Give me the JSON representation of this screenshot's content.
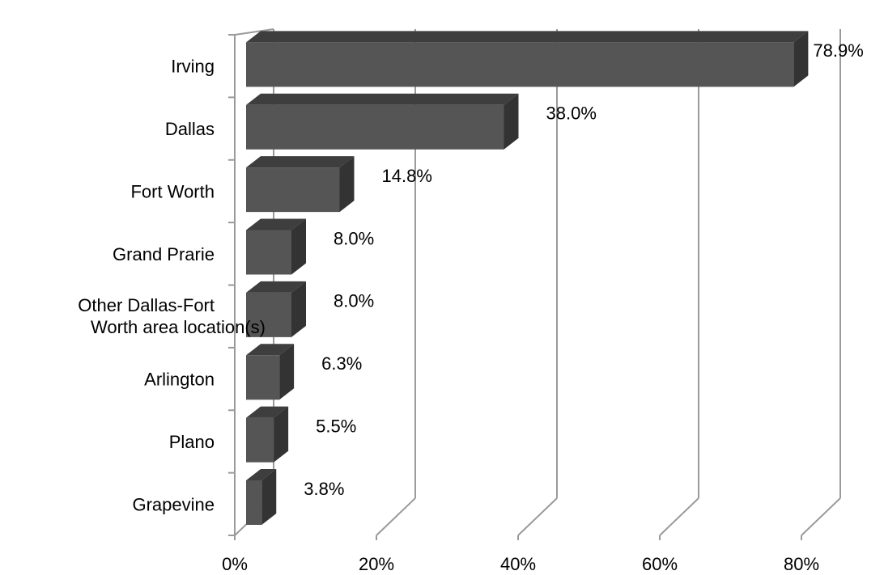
{
  "chart_data": {
    "type": "bar",
    "orientation": "horizontal",
    "style": "3d",
    "categories": [
      "Irving",
      "Dallas",
      "Fort Worth",
      "Grand Prarie",
      "Other Dallas-Fort Worth area location(s)",
      "Arlington",
      "Plano",
      "Grapevine"
    ],
    "values": [
      78.9,
      38.0,
      14.8,
      8.0,
      8.0,
      6.3,
      5.5,
      3.8
    ],
    "data_labels": [
      "78.9%",
      "38.0%",
      "14.8%",
      "8.0%",
      "8.0%",
      "6.3%",
      "5.5%",
      "3.8%"
    ],
    "x_ticks": [
      0,
      20,
      40,
      60,
      80
    ],
    "x_tick_labels": [
      "0%",
      "20%",
      "40%",
      "60%",
      "80%"
    ],
    "xlim": [
      0,
      80
    ],
    "title": "",
    "xlabel": "",
    "ylabel": "",
    "grid": true,
    "legend": "none",
    "colors": {
      "bar_front": "#555555",
      "bar_top": "#3e3e3e",
      "bar_side": "#333333",
      "grid": "#9a9a9a"
    }
  }
}
